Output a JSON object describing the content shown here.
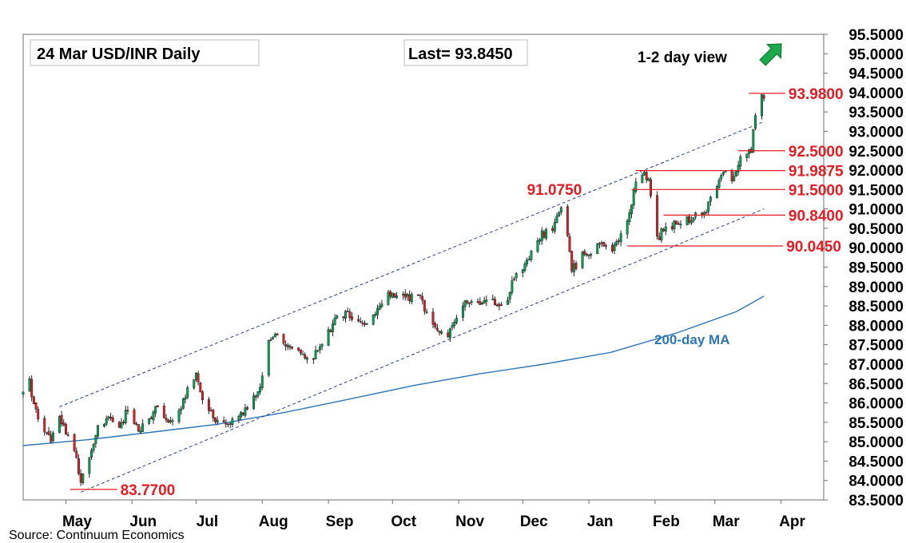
{
  "header": {
    "title": "24 Mar  USD/INR  Daily",
    "last": "Last= 93.8450",
    "view": "1-2 day view",
    "source": "Source: Continuum Economics",
    "view_arrow_icon": "arrow-up-right-icon"
  },
  "colors": {
    "up": "#00a651",
    "down": "#e31b23",
    "wick": "#222222",
    "level": "#e31b23",
    "ma": "#2e75b6",
    "channel": "#2f3c8c",
    "arrow": "#1aa84a",
    "frame": "#6f6f6f"
  },
  "chart_data": {
    "type": "candlestick",
    "ylim": [
      83.5,
      95.5
    ],
    "y_ticks": [
      "95.5000",
      "95.0000",
      "94.5000",
      "94.0000",
      "93.5000",
      "93.0000",
      "92.5000",
      "92.0000",
      "91.5000",
      "91.0000",
      "90.5000",
      "90.0000",
      "89.5000",
      "89.0000",
      "88.5000",
      "88.0000",
      "87.5000",
      "87.0000",
      "86.5000",
      "86.0000",
      "85.5000",
      "85.0000",
      "84.5000",
      "84.0000",
      "83.5000"
    ],
    "x_ticks": [
      {
        "label": "May",
        "date": "2025-05-01"
      },
      {
        "label": "Jun",
        "date": "2025-06-01"
      },
      {
        "label": "Jul",
        "date": "2025-07-01"
      },
      {
        "label": "Aug",
        "date": "2025-08-01"
      },
      {
        "label": "Sep",
        "date": "2025-09-01"
      },
      {
        "label": "Oct",
        "date": "2025-10-01"
      },
      {
        "label": "Nov",
        "date": "2025-11-01"
      },
      {
        "label": "Dec",
        "date": "2025-12-01"
      },
      {
        "label": "Jan",
        "date": "2026-01-01"
      },
      {
        "label": "Feb",
        "date": "2026-02-01"
      },
      {
        "label": "Mar",
        "date": "2026-03-01"
      },
      {
        "label": "Apr",
        "date": "2026-04-01"
      }
    ],
    "x_range": [
      "2025-04-11",
      "2026-04-21"
    ],
    "price_path": [
      [
        "2025-04-11",
        86.3
      ],
      [
        "2025-04-14",
        86.6
      ],
      [
        "2025-04-16",
        85.9
      ],
      [
        "2025-04-21",
        85.3
      ],
      [
        "2025-04-24",
        85.1
      ],
      [
        "2025-04-28",
        85.6
      ],
      [
        "2025-05-02",
        85.2
      ],
      [
        "2025-05-06",
        84.5
      ],
      [
        "2025-05-08",
        83.9
      ],
      [
        "2025-05-12",
        84.6
      ],
      [
        "2025-05-16",
        85.4
      ],
      [
        "2025-05-21",
        85.6
      ],
      [
        "2025-05-26",
        85.3
      ],
      [
        "2025-05-30",
        85.9
      ],
      [
        "2025-06-04",
        85.3
      ],
      [
        "2025-06-09",
        85.6
      ],
      [
        "2025-06-13",
        85.9
      ],
      [
        "2025-06-18",
        85.6
      ],
      [
        "2025-06-23",
        85.7
      ],
      [
        "2025-06-27",
        86.4
      ],
      [
        "2025-07-01",
        86.8
      ],
      [
        "2025-07-04",
        86.0
      ],
      [
        "2025-07-08",
        85.7
      ],
      [
        "2025-07-14",
        85.4
      ],
      [
        "2025-07-18",
        85.6
      ],
      [
        "2025-07-23",
        85.7
      ],
      [
        "2025-07-28",
        86.1
      ],
      [
        "2025-07-31",
        86.5
      ],
      [
        "2025-08-04",
        87.6
      ],
      [
        "2025-08-07",
        87.7
      ],
      [
        "2025-08-12",
        87.5
      ],
      [
        "2025-08-18",
        87.4
      ],
      [
        "2025-08-22",
        87.1
      ],
      [
        "2025-08-27",
        87.3
      ],
      [
        "2025-09-01",
        87.8
      ],
      [
        "2025-09-05",
        88.2
      ],
      [
        "2025-09-10",
        88.3
      ],
      [
        "2025-09-15",
        88.1
      ],
      [
        "2025-09-19",
        88.0
      ],
      [
        "2025-09-24",
        88.4
      ],
      [
        "2025-09-29",
        88.8
      ],
      [
        "2025-10-03",
        88.7
      ],
      [
        "2025-10-08",
        88.75
      ],
      [
        "2025-10-14",
        88.7
      ],
      [
        "2025-10-17",
        88.3
      ],
      [
        "2025-10-22",
        87.9
      ],
      [
        "2025-10-27",
        87.8
      ],
      [
        "2025-10-31",
        88.2
      ],
      [
        "2025-11-04",
        88.7
      ],
      [
        "2025-11-10",
        88.6
      ],
      [
        "2025-11-14",
        88.6
      ],
      [
        "2025-11-19",
        88.6
      ],
      [
        "2025-11-24",
        88.6
      ],
      [
        "2025-11-27",
        89.3
      ],
      [
        "2025-12-02",
        89.6
      ],
      [
        "2025-12-05",
        89.9
      ],
      [
        "2025-12-09",
        90.3
      ],
      [
        "2025-12-12",
        90.4
      ],
      [
        "2025-12-16",
        90.6
      ],
      [
        "2025-12-19",
        91.05
      ],
      [
        "2025-12-22",
        90.4
      ],
      [
        "2025-12-24",
        89.4
      ],
      [
        "2025-12-29",
        89.8
      ],
      [
        "2026-01-02",
        89.9
      ],
      [
        "2026-01-07",
        90.1
      ],
      [
        "2026-01-12",
        89.9
      ],
      [
        "2026-01-16",
        90.3
      ],
      [
        "2026-01-20",
        90.9
      ],
      [
        "2026-01-23",
        91.7
      ],
      [
        "2026-01-26",
        91.9
      ],
      [
        "2026-01-29",
        91.8
      ],
      [
        "2026-02-02",
        90.2
      ],
      [
        "2026-02-05",
        90.5
      ],
      [
        "2026-02-10",
        90.6
      ],
      [
        "2026-02-16",
        90.7
      ],
      [
        "2026-02-20",
        90.9
      ],
      [
        "2026-02-25",
        91.0
      ],
      [
        "2026-03-02",
        91.5
      ],
      [
        "2026-03-05",
        92.0
      ],
      [
        "2026-03-09",
        91.8
      ],
      [
        "2026-03-12",
        92.2
      ],
      [
        "2026-03-16",
        92.4
      ],
      [
        "2026-03-18",
        92.5
      ],
      [
        "2026-03-20",
        93.5
      ],
      [
        "2026-03-23",
        93.9
      ],
      [
        "2026-03-24",
        93.845
      ]
    ],
    "candle_seed": 20250414,
    "ma200": [
      [
        "2025-04-11",
        84.9
      ],
      [
        "2025-05-11",
        85.05
      ],
      [
        "2025-06-11",
        85.25
      ],
      [
        "2025-07-11",
        85.45
      ],
      [
        "2025-08-11",
        85.75
      ],
      [
        "2025-09-11",
        86.1
      ],
      [
        "2025-10-11",
        86.45
      ],
      [
        "2025-11-11",
        86.75
      ],
      [
        "2025-12-11",
        87.0
      ],
      [
        "2026-01-11",
        87.3
      ],
      [
        "2026-02-11",
        87.8
      ],
      [
        "2026-03-11",
        88.35
      ],
      [
        "2026-03-24",
        88.75
      ]
    ],
    "ma_label": "200-day MA",
    "channel": [
      {
        "name": "channel-upper",
        "from": [
          "2025-04-28",
          85.9
        ],
        "to": [
          "2026-03-24",
          93.25
        ]
      },
      {
        "name": "channel-lower",
        "from": [
          "2025-05-08",
          83.7
        ],
        "to": [
          "2026-03-24",
          91.0
        ]
      }
    ],
    "levels": [
      {
        "name": "level-93-98",
        "label": "93.9800",
        "value": 93.98,
        "from": "2026-03-17",
        "to": "2026-04-03"
      },
      {
        "name": "level-92-50",
        "label": "92.5000",
        "value": 92.5,
        "from": "2026-03-12",
        "to": "2026-04-03"
      },
      {
        "name": "level-91-9875",
        "label": "91.9875",
        "value": 91.9875,
        "from": "2026-01-23",
        "to": "2026-04-03"
      },
      {
        "name": "level-91-50",
        "label": "91.5000",
        "value": 91.5,
        "from": "2026-01-21",
        "to": "2026-04-03"
      },
      {
        "name": "level-90-84",
        "label": "90.8400",
        "value": 90.84,
        "from": "2026-02-05",
        "to": "2026-04-03"
      },
      {
        "name": "level-90-045",
        "label": "90.0450",
        "value": 90.045,
        "from": "2026-01-19",
        "to": "2026-04-02"
      },
      {
        "name": "level-83-77",
        "label": "83.7700",
        "value": 83.77,
        "from": "2025-05-03",
        "to": "2025-05-25"
      }
    ],
    "annotations": [
      {
        "name": "peak-label",
        "label": "91.0750",
        "value": 91.075,
        "date": "2025-12-03"
      }
    ]
  }
}
